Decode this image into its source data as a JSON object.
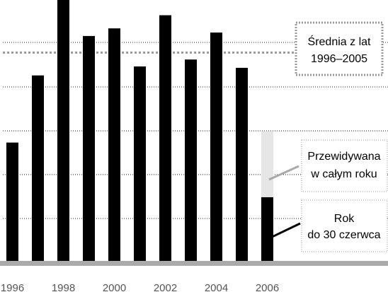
{
  "chart_data": {
    "type": "bar",
    "categories": [
      "1996",
      "1997",
      "1998",
      "1999",
      "2000",
      "2001",
      "2002",
      "2003",
      "2004",
      "2005",
      "2006"
    ],
    "values": [
      172,
      269,
      378,
      326,
      337,
      282,
      356,
      292,
      331,
      280,
      93
    ],
    "forecast": {
      "category": "2006",
      "value": 188
    },
    "average": 302,
    "ylim": [
      0,
      378
    ],
    "grid": true,
    "x_tick_labels": [
      "1996",
      "1998",
      "2000",
      "2002",
      "2004",
      "2006"
    ],
    "legend": {
      "average_label": [
        "Średnia z lat",
        "1996–2005"
      ],
      "forecast_label": [
        "Przewidywana",
        "w całym roku"
      ],
      "ytd_label": [
        "Rok",
        "do 30 czerwca"
      ]
    },
    "colors": {
      "bar": "#000000",
      "forecast": "#e6e6e6",
      "baseline": "#aaaaaa",
      "grid": "#222222",
      "average_line": "#999999",
      "box_border": "#999999",
      "pointer": "#aaaaaa",
      "tick_text": "#555555"
    }
  }
}
